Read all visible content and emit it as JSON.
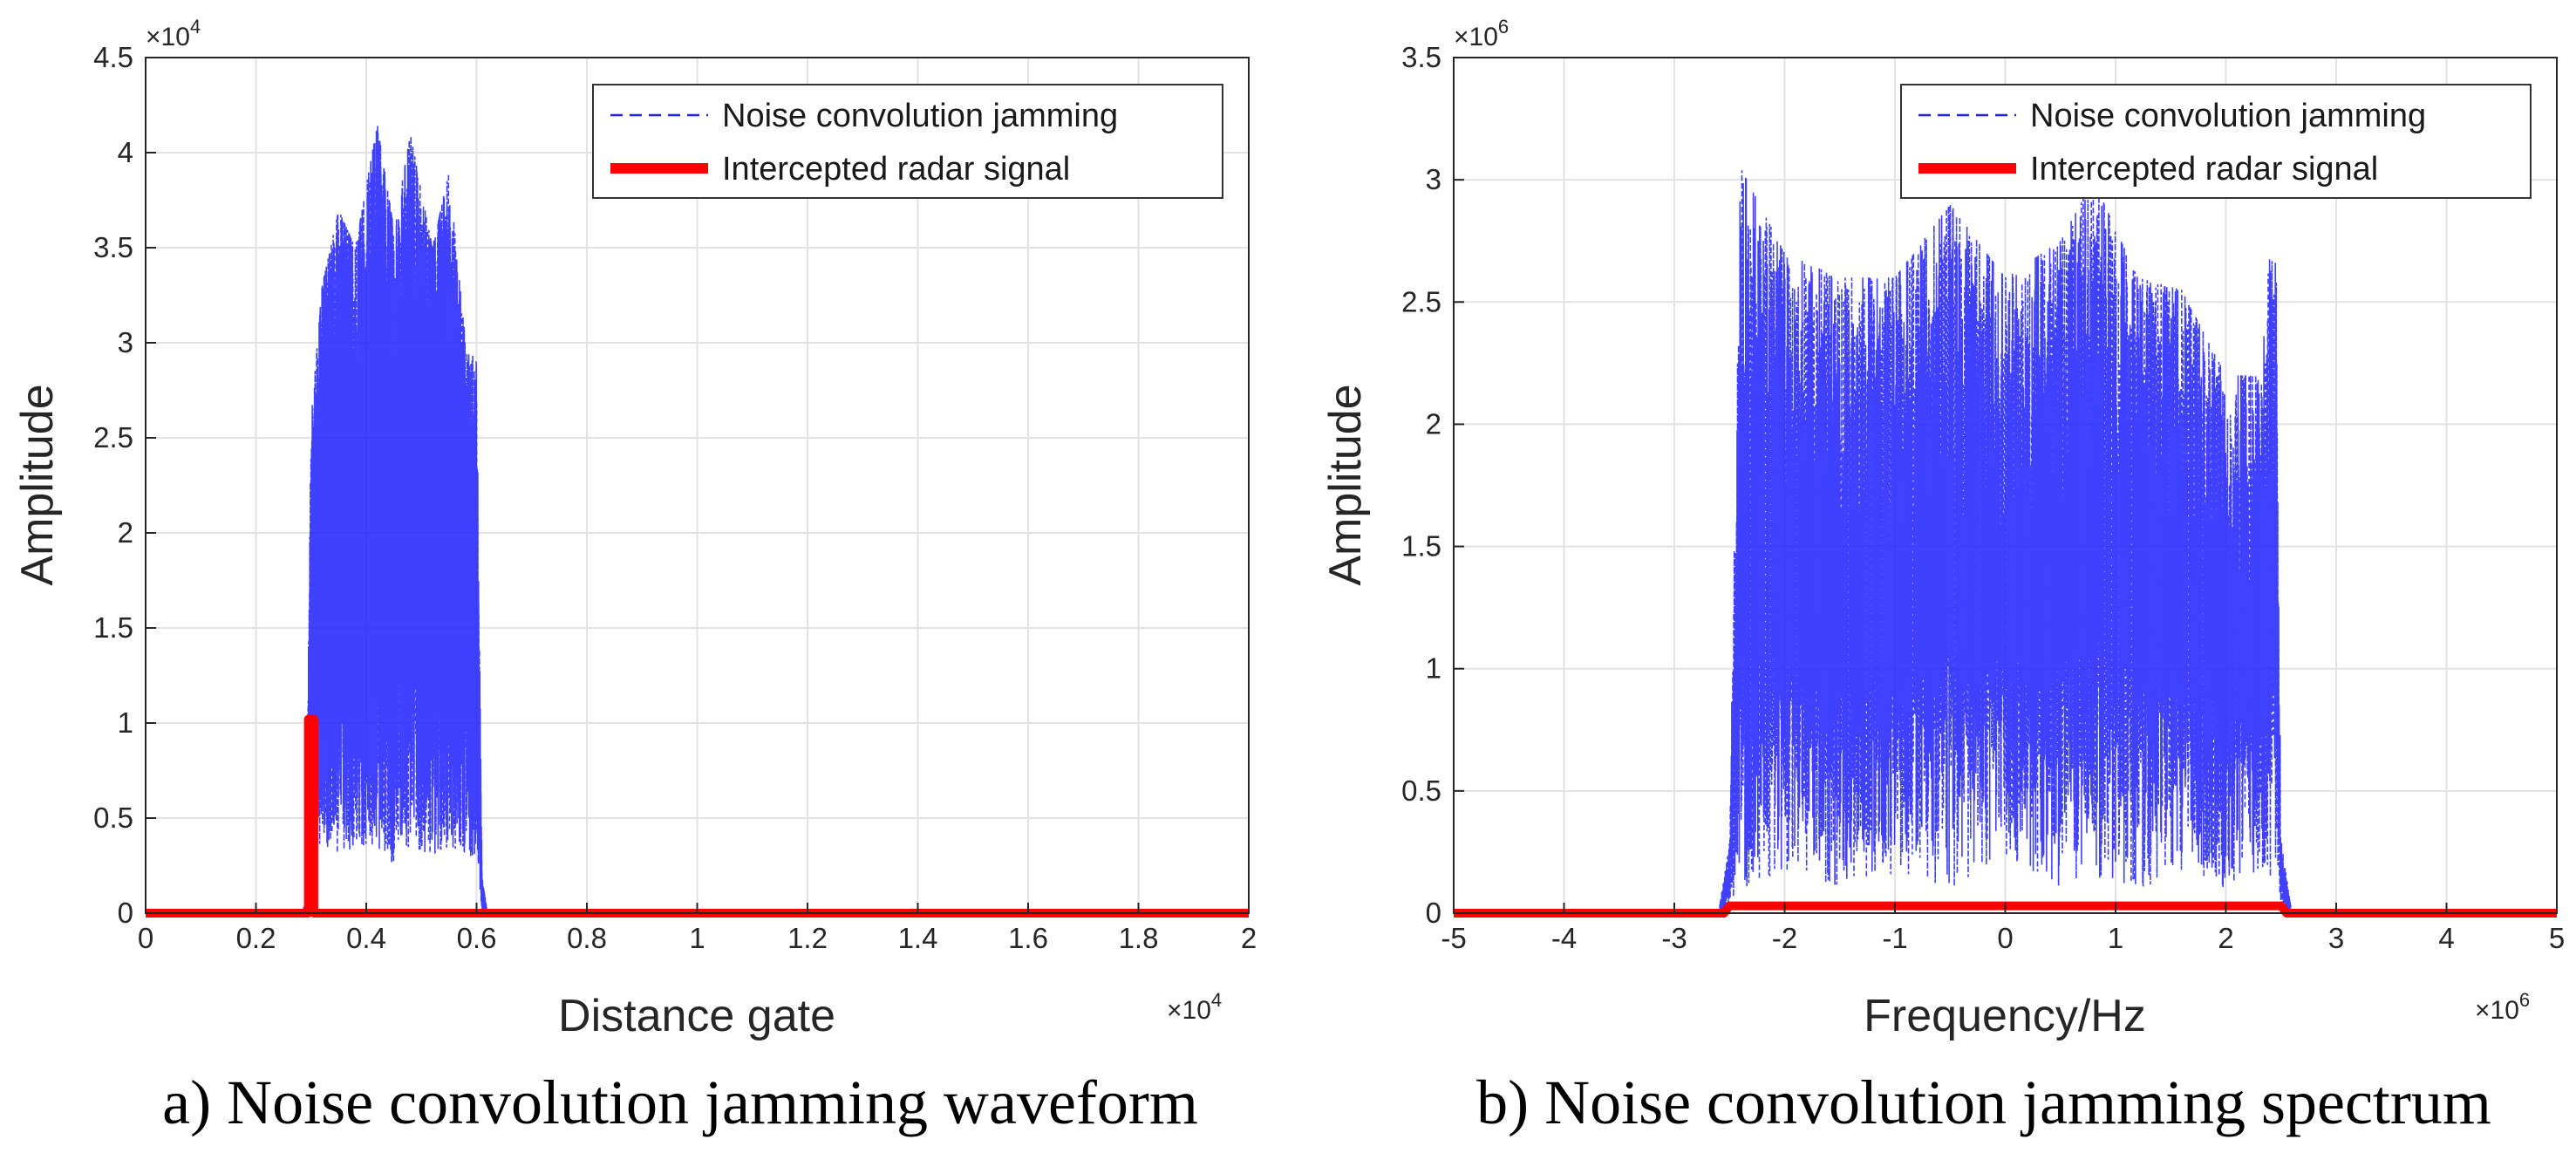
{
  "chart_data": [
    {
      "type": "line",
      "panel": "a",
      "caption": "a) Noise convolution jamming waveform",
      "xlabel": "Distance gate",
      "ylabel": "Amplitude",
      "x_exponent_label": "×10",
      "x_exponent": "4",
      "y_exponent_label": "×10",
      "y_exponent": "4",
      "xlim": [
        0,
        2
      ],
      "ylim": [
        0,
        4.5
      ],
      "x_ticks": [
        "0",
        "0.2",
        "0.4",
        "0.6",
        "0.8",
        "1",
        "1.2",
        "1.4",
        "1.6",
        "1.8",
        "2"
      ],
      "y_ticks": [
        "0",
        "0.5",
        "1",
        "1.5",
        "2",
        "2.5",
        "3",
        "3.5",
        "4",
        "4.5"
      ],
      "grid": true,
      "legend_position": "top-right",
      "series": [
        {
          "name": "Noise convolution jamming",
          "style": "dashed",
          "color": "#1f1fff",
          "envelope": {
            "x": [
              0,
              0.28,
              0.29,
              0.3,
              0.32,
              0.35,
              0.38,
              0.42,
              0.45,
              0.48,
              0.52,
              0.55,
              0.58,
              0.6,
              0.61,
              0.62,
              2
            ],
            "y_max": [
              0,
              0,
              0.05,
              2.6,
              3.3,
              3.7,
              3.5,
              4.15,
              3.6,
              4.1,
              3.5,
              3.9,
              3.0,
              2.9,
              0.2,
              0,
              0
            ],
            "y_min": [
              0,
              0,
              0,
              0.35,
              0.35,
              0.3,
              0.35,
              0.35,
              0.25,
              0.35,
              0.3,
              0.35,
              0.3,
              0.3,
              0,
              0,
              0
            ]
          }
        },
        {
          "name": "Intercepted radar signal",
          "style": "solid",
          "color": "#ff0000",
          "x": [
            0,
            0.295,
            0.295,
            0.305,
            0.305,
            2
          ],
          "y": [
            0,
            0,
            1.02,
            1.02,
            0,
            0
          ]
        }
      ]
    },
    {
      "type": "line",
      "panel": "b",
      "caption": "b) Noise convolution jamming spectrum",
      "xlabel": "Frequency/Hz",
      "ylabel": "Amplitude",
      "x_exponent_label": "×10",
      "x_exponent": "6",
      "y_exponent_label": "×10",
      "y_exponent": "6",
      "xlim": [
        -5,
        5
      ],
      "ylim": [
        0,
        3.5
      ],
      "x_ticks": [
        "-5",
        "-4",
        "-3",
        "-2",
        "-1",
        "0",
        "1",
        "2",
        "3",
        "4",
        "5"
      ],
      "y_ticks": [
        "0",
        "0.5",
        "1",
        "1.5",
        "2",
        "2.5",
        "3",
        "3.5"
      ],
      "grid": true,
      "legend_position": "top-right",
      "series": [
        {
          "name": "Noise convolution jamming",
          "style": "dashed",
          "color": "#1f1fff",
          "envelope": {
            "x": [
              -5,
              -2.6,
              -2.5,
              -2.4,
              -2.0,
              -1.5,
              -1.0,
              -0.5,
              0,
              0.5,
              0.8,
              1.2,
              1.6,
              2.0,
              2.3,
              2.45,
              2.5,
              2.6,
              5
            ],
            "y_max": [
              0,
              0,
              0.3,
              3.05,
              2.7,
              2.6,
              2.6,
              2.9,
              2.6,
              2.75,
              3.0,
              2.6,
              2.55,
              2.2,
              2.2,
              2.95,
              0.3,
              0,
              0
            ],
            "y_min": [
              0,
              0,
              0,
              0.1,
              0.15,
              0.1,
              0.15,
              0.1,
              0.2,
              0.1,
              0.15,
              0.1,
              0.15,
              0.1,
              0.15,
              0.1,
              0,
              0,
              0
            ]
          }
        },
        {
          "name": "Intercepted radar signal",
          "style": "solid",
          "color": "#ff0000",
          "x": [
            -5,
            -2.55,
            -2.5,
            2.5,
            2.55,
            5
          ],
          "y": [
            0,
            0,
            0.03,
            0.03,
            0,
            0
          ]
        }
      ]
    }
  ]
}
